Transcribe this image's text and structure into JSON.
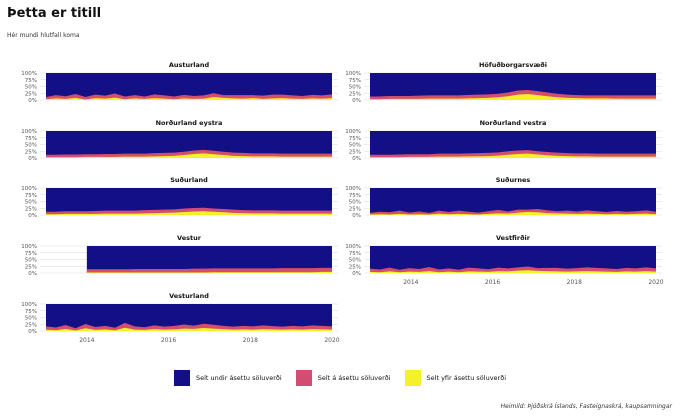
{
  "title": "Þetta er titill",
  "subtitle": "Hér mundi hlutfall koma",
  "caption": "Heimild: Þjóðskrá Íslands, Fasteignaskrá, kaupsamningar",
  "colors": {
    "under": "#131085",
    "at": "#d24e71",
    "over": "#f4f129"
  },
  "chart_data": {
    "type": "area",
    "stacked_percent": true,
    "yticks": [
      "100%",
      "75%",
      "50%",
      "25%",
      "0%"
    ],
    "xticks": [
      "2014",
      "2016",
      "2018",
      "2020"
    ],
    "xlim": [
      2013,
      2020
    ],
    "ylim": [
      0,
      100
    ],
    "legend": [
      {
        "key": "under",
        "label": "Selt undir ásettu söluverði"
      },
      {
        "key": "at",
        "label": "Selt á ásettu söluverði"
      },
      {
        "key": "over",
        "label": "Selt yfir ásettu söluverði"
      }
    ],
    "legend_position": "bottom",
    "panels": [
      {
        "name": "Austurland",
        "start": 2013.0,
        "at": [
          8,
          12,
          10,
          14,
          9,
          13,
          11,
          15,
          10,
          12,
          9,
          14,
          12,
          10,
          13,
          11,
          12,
          14,
          10,
          12,
          13,
          11,
          12,
          14,
          13,
          12,
          11,
          13,
          12,
          14
        ],
        "over": [
          3,
          6,
          4,
          8,
          2,
          7,
          5,
          9,
          3,
          6,
          4,
          7,
          5,
          3,
          6,
          4,
          5,
          11,
          8,
          6,
          5,
          7,
          4,
          6,
          7,
          5,
          4,
          6,
          5,
          7
        ]
      },
      {
        "name": "Höfuðborgarsvæði",
        "start": 2013.0,
        "at": [
          10,
          10,
          11,
          11,
          11,
          12,
          12,
          12,
          12,
          12,
          13,
          13,
          13,
          13,
          14,
          15,
          15,
          15,
          14,
          13,
          12,
          11,
          11,
          11,
          11,
          12,
          12,
          12,
          12,
          12
        ],
        "over": [
          3,
          3,
          4,
          4,
          4,
          4,
          5,
          5,
          5,
          5,
          6,
          7,
          8,
          10,
          14,
          20,
          22,
          18,
          14,
          10,
          8,
          7,
          6,
          6,
          6,
          5,
          5,
          5,
          5,
          5
        ]
      },
      {
        "name": "Norðurland eystra",
        "start": 2013.0,
        "at": [
          9,
          9,
          10,
          10,
          10,
          10,
          11,
          11,
          11,
          11,
          11,
          12,
          12,
          12,
          12,
          13,
          13,
          13,
          12,
          12,
          12,
          11,
          11,
          11,
          11,
          11,
          11,
          11,
          11,
          11
        ],
        "over": [
          3,
          3,
          3,
          3,
          4,
          4,
          4,
          4,
          5,
          5,
          5,
          6,
          7,
          8,
          11,
          15,
          17,
          14,
          11,
          8,
          7,
          6,
          6,
          6,
          5,
          5,
          5,
          5,
          5,
          5
        ]
      },
      {
        "name": "Norðurland vestra",
        "start": 2013.0,
        "at": [
          9,
          9,
          9,
          10,
          10,
          10,
          10,
          11,
          11,
          11,
          11,
          12,
          12,
          12,
          13,
          13,
          13,
          12,
          12,
          12,
          11,
          11,
          11,
          11,
          11,
          11,
          11,
          11,
          11,
          11
        ],
        "over": [
          3,
          3,
          3,
          3,
          4,
          4,
          4,
          5,
          5,
          5,
          6,
          6,
          7,
          9,
          12,
          15,
          16,
          13,
          10,
          8,
          7,
          6,
          6,
          5,
          5,
          5,
          5,
          5,
          5,
          5
        ]
      },
      {
        "name": "Suðurland",
        "start": 2013.0,
        "at": [
          9,
          9,
          10,
          10,
          10,
          11,
          11,
          11,
          11,
          11,
          12,
          12,
          12,
          12,
          13,
          13,
          13,
          12,
          12,
          12,
          11,
          11,
          11,
          11,
          11,
          11,
          11,
          11,
          11,
          11
        ],
        "over": [
          3,
          3,
          4,
          4,
          4,
          4,
          5,
          5,
          5,
          5,
          6,
          7,
          8,
          9,
          11,
          13,
          14,
          12,
          10,
          8,
          7,
          6,
          6,
          6,
          5,
          5,
          5,
          5,
          5,
          5
        ]
      },
      {
        "name": "Suðurnes",
        "start": 2013.0,
        "at": [
          6,
          9,
          8,
          12,
          7,
          10,
          6,
          11,
          8,
          12,
          9,
          7,
          10,
          13,
          8,
          11,
          9,
          12,
          10,
          8,
          11,
          9,
          12,
          10,
          8,
          11,
          9,
          10,
          12,
          9
        ],
        "over": [
          2,
          3,
          2,
          4,
          2,
          3,
          2,
          5,
          3,
          4,
          3,
          2,
          4,
          6,
          5,
          9,
          11,
          10,
          7,
          6,
          5,
          4,
          5,
          4,
          3,
          4,
          3,
          4,
          5,
          3
        ]
      },
      {
        "name": "Vestur",
        "start": 2014.0,
        "at": [
          12,
          12,
          12,
          12,
          12,
          13,
          13,
          13,
          13,
          13,
          13,
          14,
          14,
          14,
          14,
          14,
          14,
          14,
          14,
          14,
          15,
          15,
          15,
          15,
          15,
          15
        ],
        "over": [
          2,
          2,
          2,
          2,
          2,
          2,
          2,
          2,
          2,
          2,
          2,
          2,
          2,
          3,
          3,
          3,
          3,
          3,
          3,
          3,
          3,
          3,
          3,
          3,
          4,
          4
        ]
      },
      {
        "name": "Vestfirðir",
        "start": 2013.0,
        "at": [
          12,
          10,
          14,
          9,
          13,
          11,
          15,
          10,
          12,
          9,
          14,
          12,
          10,
          13,
          11,
          12,
          14,
          10,
          12,
          13,
          11,
          12,
          14,
          13,
          12,
          11,
          13,
          12,
          14,
          12
        ],
        "over": [
          4,
          3,
          6,
          3,
          5,
          4,
          7,
          3,
          5,
          3,
          6,
          5,
          4,
          7,
          6,
          9,
          10,
          8,
          7,
          6,
          5,
          6,
          7,
          6,
          5,
          4,
          6,
          5,
          7,
          5
        ]
      },
      {
        "name": "Vesturland",
        "start": 2013.0,
        "at": [
          12,
          10,
          14,
          8,
          16,
          11,
          13,
          9,
          18,
          12,
          10,
          14,
          11,
          13,
          15,
          12,
          16,
          14,
          12,
          11,
          13,
          12,
          14,
          12,
          11,
          13,
          12,
          14,
          13,
          12
        ],
        "over": [
          5,
          3,
          8,
          2,
          10,
          4,
          6,
          3,
          12,
          5,
          4,
          7,
          5,
          6,
          9,
          8,
          11,
          9,
          7,
          5,
          6,
          5,
          7,
          6,
          5,
          6,
          5,
          7,
          6,
          5
        ]
      }
    ]
  }
}
